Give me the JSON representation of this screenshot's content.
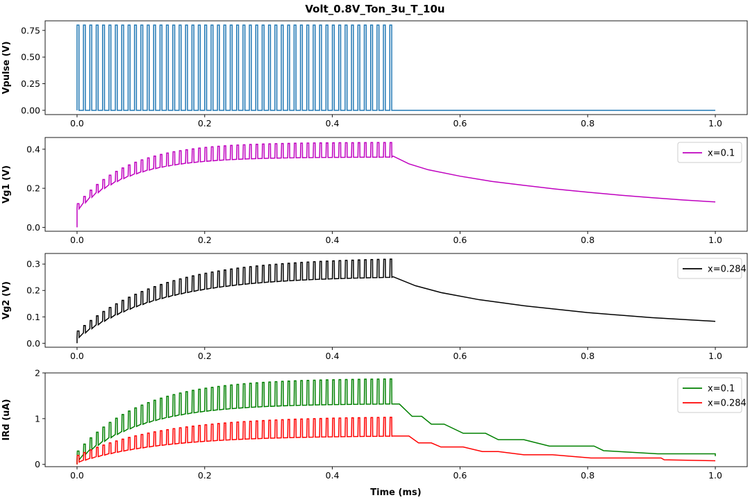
{
  "figure": {
    "title": "Volt_0.8V_Ton_3u_T_10u",
    "xlabel": "Time (ms)"
  },
  "chart_data": [
    {
      "type": "line",
      "title": "Volt_0.8V_Ton_3u_T_10u",
      "ylabel": "Vpulse (V)",
      "xlabel": "",
      "xlim": [
        -0.05,
        1.05
      ],
      "ylim": [
        -0.04,
        0.84
      ],
      "xticks": [
        "0.0",
        "0.2",
        "0.4",
        "0.6",
        "0.8",
        "1.0"
      ],
      "yticks": [
        "0.00",
        "0.25",
        "0.50",
        "0.75"
      ],
      "legend": null,
      "series": [
        {
          "color": "#1f77b4",
          "kind": "pulse",
          "period": 0.01,
          "on_fraction": 0.3,
          "t_end": 0.495,
          "high": 0.8,
          "low": 0.0,
          "x_end": 1.0
        }
      ]
    },
    {
      "type": "line",
      "ylabel": "Vg1 (V)",
      "xlabel": "",
      "xlim": [
        -0.05,
        1.05
      ],
      "ylim": [
        -0.02,
        0.46
      ],
      "xticks": [
        "0.0",
        "0.2",
        "0.4",
        "0.6",
        "0.8",
        "1.0"
      ],
      "yticks": [
        "0.0",
        "0.2",
        "0.4"
      ],
      "legend": "top-right",
      "series": [
        {
          "name": "x=0.1",
          "color": "#bf00bf",
          "kind": "sawtooth",
          "period": 0.01,
          "t_end": 0.495,
          "low_ss": 0.36,
          "low_tau": 0.08,
          "jump_ss": 0.075,
          "first_low": 0.095,
          "decay": [
            [
              0.495,
              0.365
            ],
            [
              0.52,
              0.325
            ],
            [
              0.55,
              0.295
            ],
            [
              0.6,
              0.262
            ],
            [
              0.65,
              0.235
            ],
            [
              0.7,
              0.215
            ],
            [
              0.75,
              0.196
            ],
            [
              0.8,
              0.18
            ],
            [
              0.85,
              0.165
            ],
            [
              0.9,
              0.152
            ],
            [
              0.95,
              0.14
            ],
            [
              1.0,
              0.13
            ]
          ]
        }
      ]
    },
    {
      "type": "line",
      "ylabel": "Vg2 (V)",
      "xlabel": "",
      "xlim": [
        -0.05,
        1.05
      ],
      "ylim": [
        -0.015,
        0.34
      ],
      "xticks": [
        "0.0",
        "0.2",
        "0.4",
        "0.6",
        "0.8",
        "1.0"
      ],
      "yticks": [
        "0.0",
        "0.1",
        "0.2",
        "0.3"
      ],
      "legend": "top-right",
      "series": [
        {
          "name": "x=0.284",
          "color": "#000000",
          "kind": "sawtooth",
          "period": 0.01,
          "t_end": 0.495,
          "low_ss": 0.255,
          "low_tau": 0.13,
          "jump_ss": 0.07,
          "first_low": 0.022,
          "decay": [
            [
              0.495,
              0.252
            ],
            [
              0.53,
              0.218
            ],
            [
              0.57,
              0.192
            ],
            [
              0.63,
              0.165
            ],
            [
              0.7,
              0.142
            ],
            [
              0.8,
              0.116
            ],
            [
              0.9,
              0.097
            ],
            [
              1.0,
              0.083
            ]
          ]
        }
      ]
    },
    {
      "type": "line",
      "ylabel": "IRd (uA)",
      "xlabel": "Time (ms)",
      "xlim": [
        -0.05,
        1.05
      ],
      "ylim": [
        -0.05,
        2.0
      ],
      "xticks": [
        "0.0",
        "0.2",
        "0.4",
        "0.6",
        "0.8",
        "1.0"
      ],
      "yticks": [
        "0",
        "1",
        "2"
      ],
      "legend": "top-right",
      "series": [
        {
          "name": "x=0.1",
          "color": "#008000",
          "kind": "sawtooth",
          "period": 0.01,
          "t_end": 0.495,
          "low_ss": 1.33,
          "low_tau": 0.1,
          "jump_ss": 0.55,
          "first_low": 0.1,
          "decay": [
            [
              0.495,
              1.32
            ],
            [
              0.505,
              1.32
            ],
            [
              0.525,
              1.05
            ],
            [
              0.54,
              1.05
            ],
            [
              0.555,
              0.88
            ],
            [
              0.575,
              0.88
            ],
            [
              0.605,
              0.68
            ],
            [
              0.64,
              0.68
            ],
            [
              0.66,
              0.54
            ],
            [
              0.7,
              0.54
            ],
            [
              0.74,
              0.4
            ],
            [
              0.81,
              0.4
            ],
            [
              0.825,
              0.3
            ],
            [
              0.91,
              0.23
            ],
            [
              1.0,
              0.23
            ],
            [
              1.0,
              0.18
            ]
          ]
        },
        {
          "name": "x=0.284",
          "color": "#ff0000",
          "kind": "sawtooth",
          "period": 0.01,
          "t_end": 0.495,
          "low_ss": 0.63,
          "low_tau": 0.13,
          "jump_ss": 0.42,
          "first_low": 0.05,
          "decay": [
            [
              0.495,
              0.62
            ],
            [
              0.52,
              0.62
            ],
            [
              0.535,
              0.47
            ],
            [
              0.555,
              0.47
            ],
            [
              0.57,
              0.38
            ],
            [
              0.605,
              0.38
            ],
            [
              0.635,
              0.28
            ],
            [
              0.66,
              0.28
            ],
            [
              0.7,
              0.21
            ],
            [
              0.745,
              0.21
            ],
            [
              0.805,
              0.14
            ],
            [
              0.915,
              0.14
            ],
            [
              0.92,
              0.1
            ],
            [
              1.0,
              0.08
            ]
          ]
        }
      ]
    }
  ]
}
